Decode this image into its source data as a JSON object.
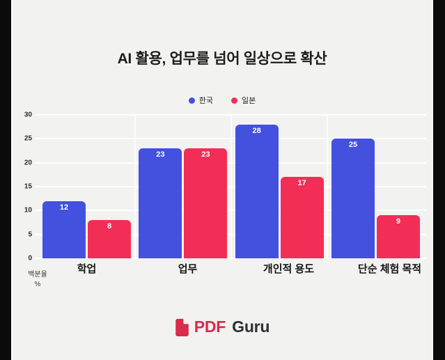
{
  "chart_data": {
    "type": "bar",
    "title": "AI 활용, 업무를 넘어 일상으로 확산",
    "categories": [
      "학업",
      "업무",
      "개인적 용도",
      "단순 체험 목적"
    ],
    "series": [
      {
        "name": "한국",
        "color": "#4450de",
        "values": [
          12,
          23,
          28,
          25
        ]
      },
      {
        "name": "일본",
        "color": "#f22e56",
        "values": [
          8,
          23,
          17,
          9
        ]
      }
    ],
    "yticks": [
      0,
      5,
      10,
      15,
      20,
      25,
      30
    ],
    "ylim": [
      0,
      30
    ],
    "ylabel_lines": [
      "백분율",
      "%"
    ],
    "grid": true,
    "legend_position": "top-center",
    "value_label_style": "inside-top-white"
  },
  "footer": {
    "brand_icon": "pdf-document-icon",
    "brand_primary": "PDF",
    "brand_secondary": "Guru",
    "brand_color": "#d92b4b",
    "brand_secondary_color": "#2e2e33"
  },
  "colors": {
    "frame": "#0b0b0b",
    "canvas_background": "#f2f2f1",
    "gridline": "#ffffff",
    "title_text": "#1b1b1b",
    "axis_text": "#2b2b2b"
  }
}
